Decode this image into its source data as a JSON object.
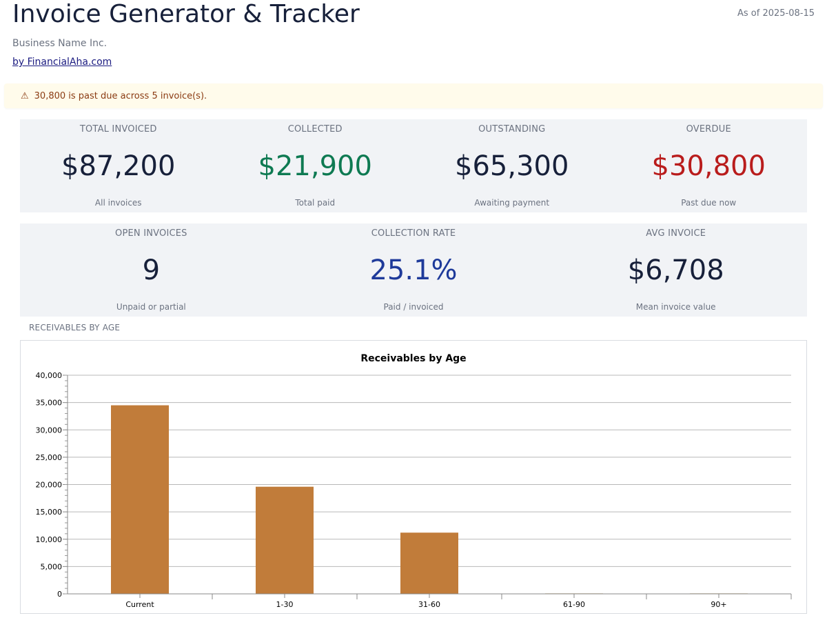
{
  "header": {
    "title": "Invoice Generator & Tracker",
    "as_of": "As of 2025-08-15",
    "business": "Business Name Inc.",
    "byline": "by FinancialAha.com"
  },
  "alert": {
    "icon": "warning-icon",
    "text": "30,800 is past due across 5 invoice(s)."
  },
  "kpis_row1": [
    {
      "label": "TOTAL INVOICED",
      "value": "$87,200",
      "sub": "All invoices",
      "color": "#17203a"
    },
    {
      "label": "COLLECTED",
      "value": "$21,900",
      "sub": "Total paid",
      "color": "#0e7a52"
    },
    {
      "label": "OUTSTANDING",
      "value": "$65,300",
      "sub": "Awaiting payment",
      "color": "#17203a"
    },
    {
      "label": "OVERDUE",
      "value": "$30,800",
      "sub": "Past due now",
      "color": "#b91c1c"
    }
  ],
  "kpis_row2": [
    {
      "label": "OPEN INVOICES",
      "value": "9",
      "sub": "Unpaid or partial",
      "color": "#17203a"
    },
    {
      "label": "COLLECTION RATE",
      "value": "25.1%",
      "sub": "Paid / invoiced",
      "color": "#1e3a9a"
    },
    {
      "label": "AVG INVOICE",
      "value": "$6,708",
      "sub": "Mean invoice value",
      "color": "#17203a"
    }
  ],
  "section_label": "RECEIVABLES BY AGE",
  "chart_data": {
    "type": "bar",
    "title": "Receivables by Age",
    "categories": [
      "Current",
      "1-30",
      "31-60",
      "61-90",
      "90+"
    ],
    "values": [
      34500,
      19600,
      11200,
      0,
      0
    ],
    "ylim": [
      0,
      40000
    ],
    "yticks": [
      0,
      5000,
      10000,
      15000,
      20000,
      25000,
      30000,
      35000,
      40000
    ],
    "ytick_labels": [
      "0",
      "5,000",
      "10,000",
      "15,000",
      "20,000",
      "25,000",
      "30,000",
      "35,000",
      "40,000"
    ],
    "xlabel": "",
    "ylabel": "",
    "grid": true,
    "bar_color": "#c17c3a"
  }
}
